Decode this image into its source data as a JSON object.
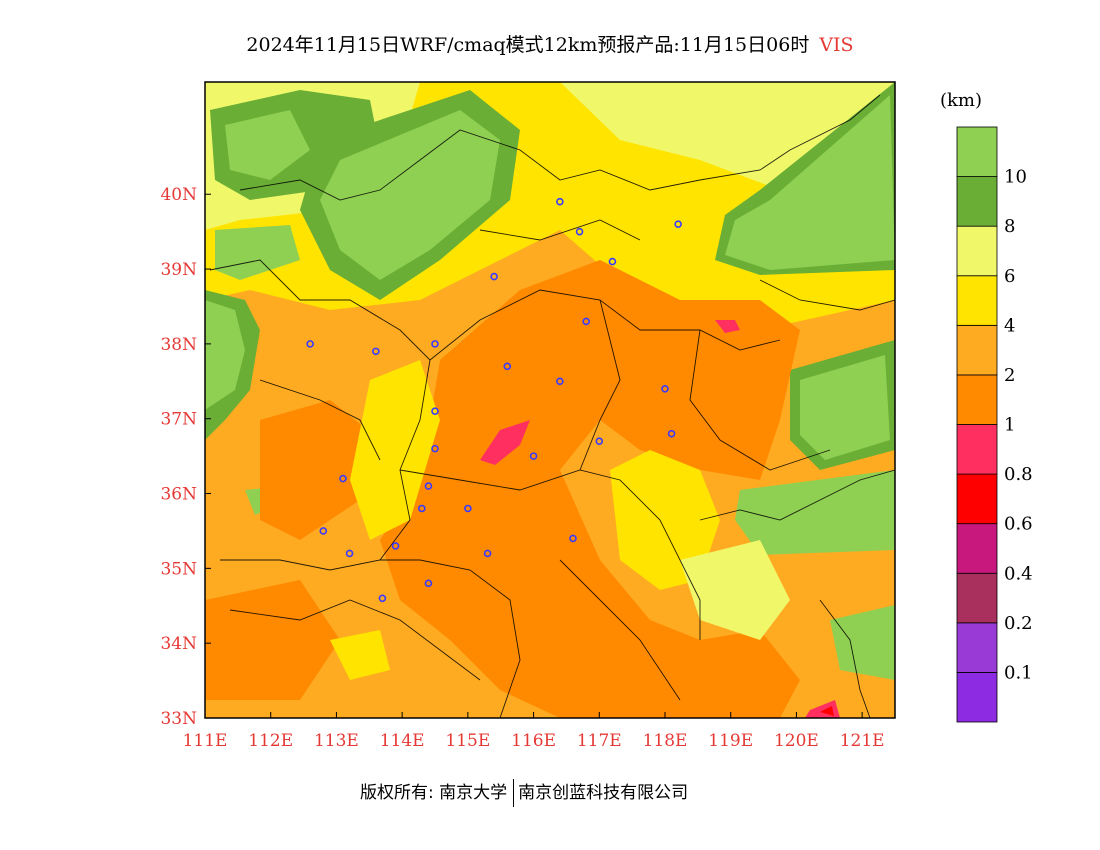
{
  "title": {
    "main": "2024年11月15日WRF/cmaq模式12km预报产品:11月15日06时",
    "variable": "VIS"
  },
  "colorbar": {
    "unit": "(km)",
    "levels": [
      {
        "color": "#8c2be2",
        "label": ""
      },
      {
        "color": "#9a3ad6",
        "label": "0.1"
      },
      {
        "color": "#a9305c",
        "label": "0.2"
      },
      {
        "color": "#c8187e",
        "label": "0.4"
      },
      {
        "color": "#ff0000",
        "label": "0.6"
      },
      {
        "color": "#ff3060",
        "label": "0.8"
      },
      {
        "color": "#ff8a00",
        "label": "1"
      },
      {
        "color": "#ffab22",
        "label": "2"
      },
      {
        "color": "#ffe400",
        "label": "4"
      },
      {
        "color": "#f0f86a",
        "label": "6"
      },
      {
        "color": "#6aae35",
        "label": "8"
      },
      {
        "color": "#8fcf52",
        "label": "10"
      }
    ]
  },
  "map": {
    "lon_ticks": [
      "111E",
      "112E",
      "113E",
      "114E",
      "115E",
      "116E",
      "117E",
      "118E",
      "119E",
      "120E",
      "121E"
    ],
    "lat_ticks": [
      "40N",
      "39N",
      "38N",
      "37N",
      "36N",
      "35N",
      "34N",
      "33N"
    ],
    "lon_range": [
      111,
      121.5
    ],
    "lat_range": [
      33,
      41.5
    ],
    "stations": [
      [
        116.4,
        39.9
      ],
      [
        116.7,
        39.5
      ],
      [
        118.2,
        39.6
      ],
      [
        117.2,
        39.1
      ],
      [
        115.4,
        38.9
      ],
      [
        116.8,
        38.3
      ],
      [
        114.5,
        38.0
      ],
      [
        112.6,
        38.0
      ],
      [
        113.6,
        37.9
      ],
      [
        115.6,
        37.7
      ],
      [
        116.4,
        37.5
      ],
      [
        118.0,
        37.4
      ],
      [
        114.5,
        37.1
      ],
      [
        114.5,
        36.6
      ],
      [
        116.0,
        36.5
      ],
      [
        117.0,
        36.7
      ],
      [
        118.1,
        36.8
      ],
      [
        113.1,
        36.2
      ],
      [
        114.4,
        36.1
      ],
      [
        114.3,
        35.8
      ],
      [
        115.0,
        35.8
      ],
      [
        112.8,
        35.5
      ],
      [
        113.9,
        35.3
      ],
      [
        113.2,
        35.2
      ],
      [
        115.3,
        35.2
      ],
      [
        116.6,
        35.4
      ],
      [
        114.4,
        34.8
      ],
      [
        113.7,
        34.6
      ]
    ]
  },
  "footer": {
    "copyright": "版权所有: 南京大学",
    "company": "南京创蓝科技有限公司"
  }
}
